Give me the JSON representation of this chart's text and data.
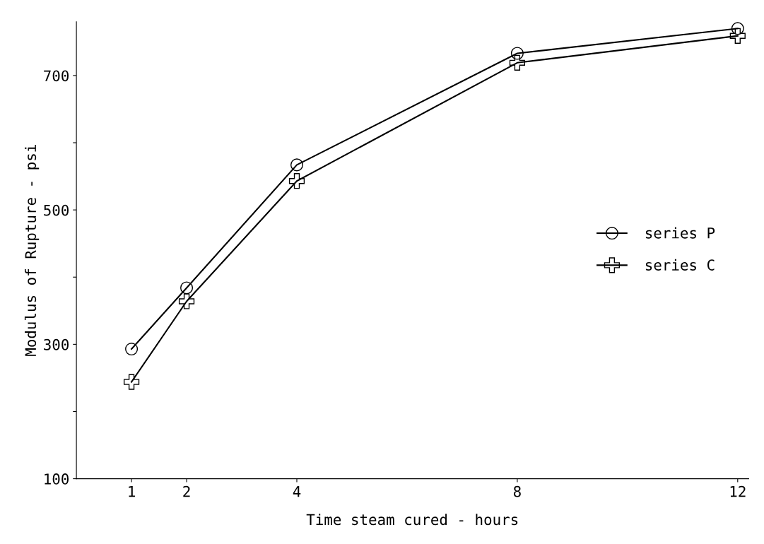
{
  "chart_data": {
    "type": "line",
    "xlabel": "Time steam cured - hours",
    "ylabel": "Modulus of Rupture - psi",
    "x": [
      1,
      2,
      4,
      8,
      12
    ],
    "series": [
      {
        "name": "series P",
        "color": "#000000",
        "marker": "circle",
        "values": [
          293,
          384,
          567,
          733,
          770
        ]
      },
      {
        "name": "series C",
        "color": "#000000",
        "marker": "cross",
        "values": [
          244,
          364,
          543,
          719,
          759
        ]
      }
    ],
    "xlim": [
      0,
      12.2
    ],
    "xticks": [
      1,
      2,
      4,
      8,
      12
    ],
    "ylim": [
      100,
      780
    ],
    "yticks": [
      100,
      {
        "value": 200,
        "label": null
      },
      300,
      {
        "value": 400,
        "label": null
      },
      500,
      {
        "value": 600,
        "label": null
      },
      700
    ],
    "grid": false,
    "legend": "right"
  }
}
